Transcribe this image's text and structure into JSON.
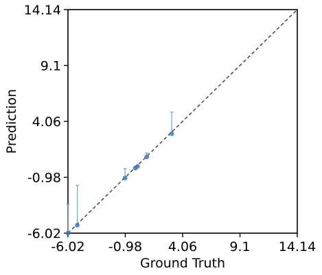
{
  "chart_data": {
    "type": "scatter",
    "title": "",
    "xlabel": "Ground Truth",
    "ylabel": "Prediction",
    "xlim": [
      -6.02,
      14.14
    ],
    "ylim": [
      -6.02,
      14.14
    ],
    "xticks": [
      -6.02,
      -0.98,
      4.06,
      9.1,
      14.14
    ],
    "yticks": [
      -6.02,
      -0.98,
      4.06,
      9.1,
      14.14
    ],
    "xtick_labels": [
      "-6.02",
      "-0.98",
      "4.06",
      "9.1",
      "14.14"
    ],
    "ytick_labels": [
      "-6.02",
      "-0.98",
      "4.06",
      "9.1",
      "14.14"
    ],
    "grid": false,
    "reference_line": {
      "style": "dashed",
      "from": [
        -6.02,
        -6.02
      ],
      "to": [
        14.14,
        14.14
      ],
      "color": "#444444"
    },
    "colors": {
      "points": "#3d7ab8",
      "errorbars": "#6fa3cf"
    },
    "points": [
      {
        "x": -6.02,
        "y": -6.02,
        "err_low": 0.0,
        "err_high": 2.6
      },
      {
        "x": -5.2,
        "y": -5.3,
        "err_low": 0.0,
        "err_high": 3.6
      },
      {
        "x": -1.0,
        "y": -1.05,
        "err_low": 0.0,
        "err_high": 0.85
      },
      {
        "x": -0.1,
        "y": -0.15,
        "err_low": 0.0,
        "err_high": 0.0
      },
      {
        "x": 0.1,
        "y": 0.0,
        "err_low": 0.0,
        "err_high": 0.0
      },
      {
        "x": 0.9,
        "y": 0.85,
        "err_low": 0.0,
        "err_high": 0.35
      },
      {
        "x": 3.1,
        "y": 2.95,
        "err_low": 0.0,
        "err_high": 1.95
      }
    ]
  }
}
